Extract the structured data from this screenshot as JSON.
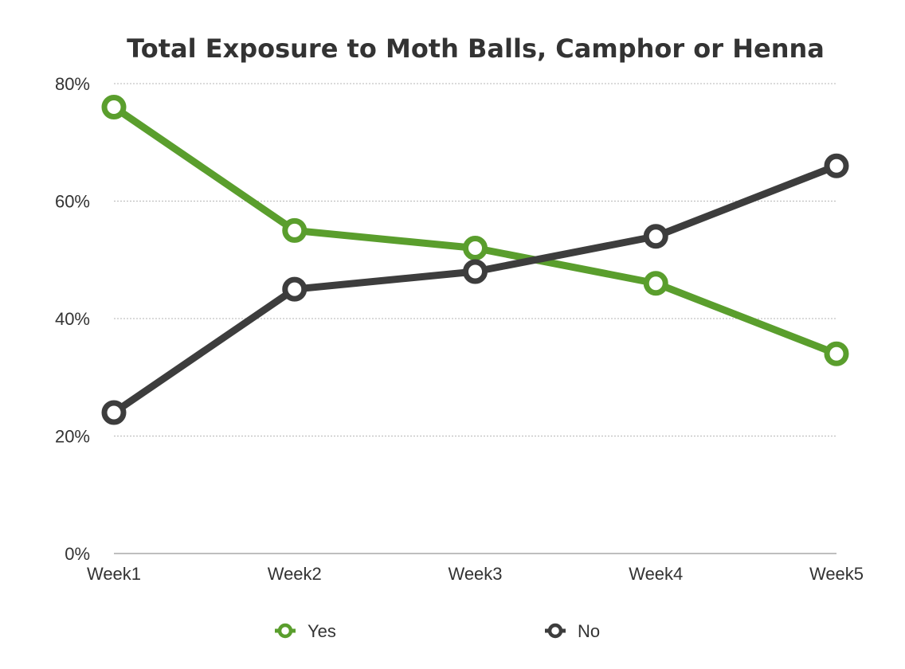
{
  "chart_data": {
    "type": "line",
    "title": "Total Exposure to Moth Balls, Camphor or Henna",
    "xlabel": "",
    "ylabel": "",
    "categories": [
      "Week1",
      "Week2",
      "Week3",
      "Week4",
      "Week5"
    ],
    "ylim": [
      0,
      80
    ],
    "y_ticks": [
      0,
      20,
      40,
      60,
      80
    ],
    "y_tick_labels": [
      "0%",
      "20%",
      "40%",
      "60%",
      "80%"
    ],
    "grid": true,
    "legend_position": "bottom",
    "series": [
      {
        "name": "Yes",
        "color": "#5a9e2d",
        "values": [
          76,
          55,
          52,
          46,
          34
        ]
      },
      {
        "name": "No",
        "color": "#3d3d3d",
        "values": [
          24,
          45,
          48,
          54,
          66
        ]
      }
    ]
  }
}
